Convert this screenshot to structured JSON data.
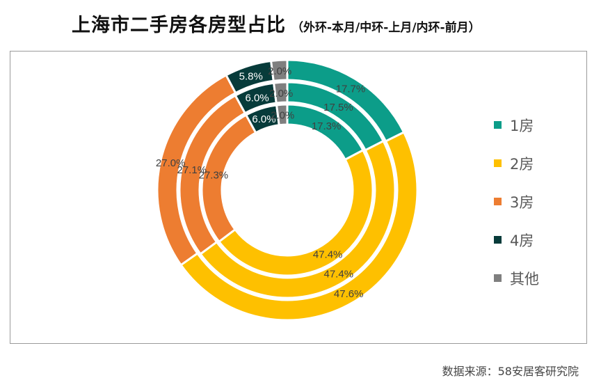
{
  "title": {
    "main": "上海市二手房各房型占比",
    "sub": "（外环-本月/中环-上月/内环-前月）"
  },
  "source": {
    "label": "数据来源：",
    "value": "58安居客研究院"
  },
  "chart_data": {
    "type": "pie",
    "variant": "multi-ring donut",
    "categories": [
      "1房",
      "2房",
      "3房",
      "4房",
      "其他"
    ],
    "colors": [
      "#0c9d89",
      "#fec000",
      "#ed7d31",
      "#073b3a",
      "#7f7f7f"
    ],
    "series": [
      {
        "ring": "outer",
        "values": [
          17.7,
          47.6,
          27.0,
          5.8,
          2.0
        ],
        "labels": [
          "17.7%",
          "47.6%",
          "27.0%",
          "5.8%",
          "2.0%"
        ]
      },
      {
        "ring": "middle",
        "values": [
          17.5,
          47.4,
          27.1,
          6.0,
          2.0
        ],
        "labels": [
          "17.5%",
          "47.4%",
          "27.1%",
          "6.0%",
          "2.0%"
        ]
      },
      {
        "ring": "inner",
        "values": [
          17.3,
          47.4,
          27.3,
          6.0,
          2.0
        ],
        "labels": [
          "17.3%",
          "47.4%",
          "27.3%",
          "6.0%",
          "2.0%"
        ]
      }
    ],
    "legend_position": "right"
  }
}
